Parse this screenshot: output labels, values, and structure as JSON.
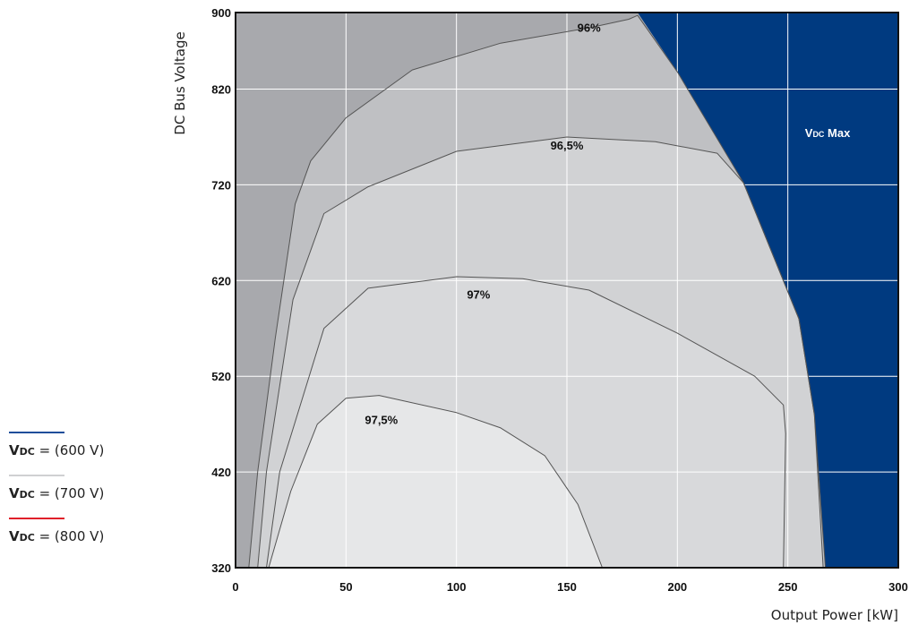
{
  "chart_data": {
    "type": "area",
    "xlabel": "Output Power [kW]",
    "ylabel": "DC Bus Voltage",
    "xlim": [
      0,
      300
    ],
    "ylim": [
      320,
      900
    ],
    "xticks": [
      0,
      50,
      100,
      150,
      200,
      250,
      300
    ],
    "yticks": [
      320,
      420,
      520,
      620,
      720,
      820,
      900
    ],
    "grid": true,
    "colors": {
      "background_region": "#a8a9ad",
      "eff_96": "#bfc0c3",
      "eff_96_5": "#d1d2d4",
      "eff_97": "#d8d9db",
      "eff_97_5": "#e6e7e8",
      "vdc_max": "#003a80",
      "contour_line": "#555555"
    },
    "regions": [
      {
        "label": "96%",
        "label_at": [
          160,
          880
        ],
        "boundary": [
          [
            6,
            320
          ],
          [
            10,
            420
          ],
          [
            18,
            560
          ],
          [
            27,
            700
          ],
          [
            34,
            745
          ],
          [
            50,
            790
          ],
          [
            80,
            840
          ],
          [
            120,
            868
          ],
          [
            160,
            884
          ],
          [
            178,
            893
          ],
          [
            182,
            897
          ],
          [
            200,
            838
          ],
          [
            230,
            722
          ],
          [
            255,
            580
          ],
          [
            262,
            480
          ],
          [
            267,
            320
          ]
        ]
      },
      {
        "label": "96,5%",
        "label_at": [
          150,
          757
        ],
        "boundary": [
          [
            10,
            320
          ],
          [
            14,
            420
          ],
          [
            26,
            600
          ],
          [
            40,
            690
          ],
          [
            60,
            718
          ],
          [
            100,
            755
          ],
          [
            150,
            770
          ],
          [
            190,
            765
          ],
          [
            218,
            753
          ],
          [
            230,
            722
          ],
          [
            255,
            580
          ],
          [
            262,
            480
          ],
          [
            266,
            320
          ]
        ]
      },
      {
        "label": "97%",
        "label_at": [
          110,
          601
        ],
        "boundary": [
          [
            14,
            320
          ],
          [
            20,
            420
          ],
          [
            40,
            570
          ],
          [
            60,
            612
          ],
          [
            100,
            624
          ],
          [
            130,
            622
          ],
          [
            160,
            610
          ],
          [
            200,
            565
          ],
          [
            235,
            520
          ],
          [
            248,
            490
          ],
          [
            249,
            460
          ],
          [
            248,
            320
          ]
        ]
      },
      {
        "label": "97,5%",
        "label_at": [
          66,
          470
        ],
        "boundary": [
          [
            15,
            320
          ],
          [
            25,
            400
          ],
          [
            37,
            470
          ],
          [
            50,
            497
          ],
          [
            65,
            500
          ],
          [
            100,
            482
          ],
          [
            120,
            466
          ],
          [
            140,
            437
          ],
          [
            155,
            386
          ],
          [
            166,
            320
          ]
        ]
      }
    ],
    "vdc_max": {
      "label": "Vdc Max",
      "label_main": "V",
      "label_sub": "DC",
      "label_rest": " Max",
      "label_at": [
        268,
        770
      ],
      "boundary": [
        [
          182,
          900
        ],
        [
          200,
          838
        ],
        [
          230,
          722
        ],
        [
          255,
          580
        ],
        [
          262,
          480
        ],
        [
          267,
          320
        ]
      ]
    },
    "legend": [
      {
        "label": "VDC = (600 V)",
        "v": "V",
        "sub": "DC",
        "rest": " = (600 V)",
        "color": "#1f4e9a"
      },
      {
        "label": "VDC = (700 V)",
        "v": "V",
        "sub": "DC",
        "rest": " = (700 V)",
        "color": "#cfd0d2"
      },
      {
        "label": "VDC = (800 V)",
        "v": "V",
        "sub": "DC",
        "rest": " = (800 V)",
        "color": "#e0202a"
      }
    ]
  }
}
